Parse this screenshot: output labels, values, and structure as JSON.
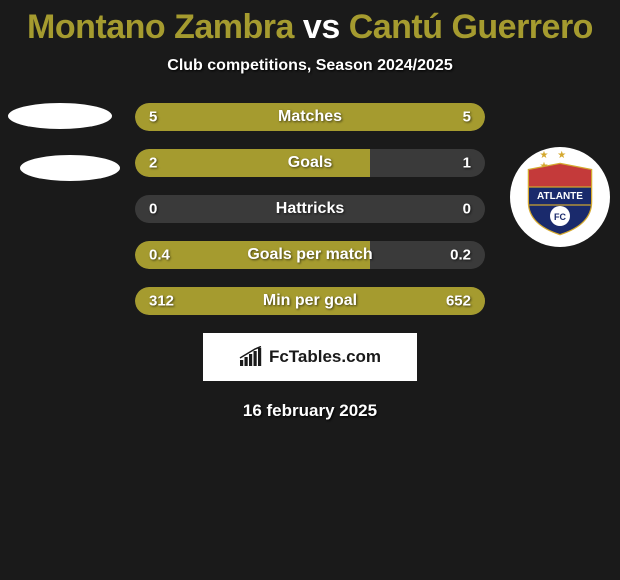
{
  "title": {
    "player1": "Montano Zambra",
    "vs": "vs",
    "player2": "Cantú Guerrero",
    "color1": "#a59b2f",
    "color_vs": "#ffffff",
    "color2": "#a59b2f"
  },
  "subtitle": "Club competitions, Season 2024/2025",
  "stats": {
    "row_bg": "#3a3a3a",
    "left_fill": "#a59b2f",
    "right_fill": "#a59b2f",
    "rows": [
      {
        "label": "Matches",
        "left": "5",
        "right": "5",
        "left_pct": 50,
        "right_pct": 50
      },
      {
        "label": "Goals",
        "left": "2",
        "right": "1",
        "left_pct": 67,
        "right_pct": 0
      },
      {
        "label": "Hattricks",
        "left": "0",
        "right": "0",
        "left_pct": 0,
        "right_pct": 0
      },
      {
        "label": "Goals per match",
        "left": "0.4",
        "right": "0.2",
        "left_pct": 67,
        "right_pct": 0
      },
      {
        "label": "Min per goal",
        "left": "312",
        "right": "652",
        "left_pct": 100,
        "right_pct": 0
      }
    ]
  },
  "crest": {
    "name": "Atlante FC",
    "text": "ATLANTE",
    "sub": "FC",
    "star_color": "#d4a82e",
    "top_color": "#c43a3a",
    "bottom_color": "#1a2a6c",
    "outline": "#d4a82e"
  },
  "watermark": {
    "text": "FcTables.com",
    "icon_color": "#1a1a1a"
  },
  "date": "16 february 2025"
}
